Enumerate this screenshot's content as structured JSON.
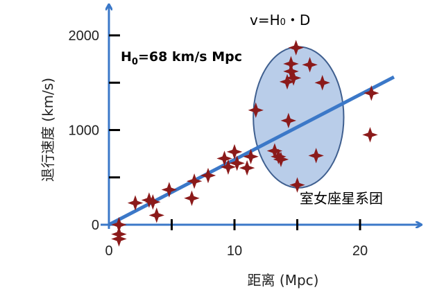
{
  "chart_data": {
    "type": "scatter",
    "xlabel": "距离 (Mpc)",
    "ylabel": "退行速度 (km/s)",
    "xlim": [
      0,
      24
    ],
    "ylim": [
      0,
      2100
    ],
    "x_ticks": [
      0,
      10,
      20
    ],
    "x_minor_ticks": [
      5,
      15
    ],
    "y_ticks": [
      0,
      1000,
      2000
    ],
    "y_minor_ticks": [
      500,
      1500
    ],
    "points": [
      {
        "x": 0.8,
        "y": 0
      },
      {
        "x": 0.8,
        "y": -100
      },
      {
        "x": 0.8,
        "y": -150
      },
      {
        "x": 2.1,
        "y": 230
      },
      {
        "x": 3.2,
        "y": 260
      },
      {
        "x": 3.5,
        "y": 240
      },
      {
        "x": 3.8,
        "y": 100
      },
      {
        "x": 4.8,
        "y": 370
      },
      {
        "x": 6.6,
        "y": 280
      },
      {
        "x": 6.8,
        "y": 460
      },
      {
        "x": 7.9,
        "y": 520
      },
      {
        "x": 9.2,
        "y": 700
      },
      {
        "x": 9.5,
        "y": 610
      },
      {
        "x": 10.0,
        "y": 770
      },
      {
        "x": 10.2,
        "y": 650
      },
      {
        "x": 11.0,
        "y": 600
      },
      {
        "x": 11.3,
        "y": 720
      },
      {
        "x": 11.7,
        "y": 1210
      },
      {
        "x": 13.2,
        "y": 780
      },
      {
        "x": 13.5,
        "y": 720
      },
      {
        "x": 13.7,
        "y": 690
      },
      {
        "x": 14.3,
        "y": 1100
      },
      {
        "x": 14.5,
        "y": 1700
      },
      {
        "x": 14.5,
        "y": 1620
      },
      {
        "x": 14.2,
        "y": 1510
      },
      {
        "x": 14.7,
        "y": 1550
      },
      {
        "x": 14.9,
        "y": 1870
      },
      {
        "x": 15.0,
        "y": 420
      },
      {
        "x": 16.0,
        "y": 1690
      },
      {
        "x": 16.5,
        "y": 730
      },
      {
        "x": 17.0,
        "y": 1500
      },
      {
        "x": 20.9,
        "y": 1390
      },
      {
        "x": 20.8,
        "y": 950
      }
    ],
    "fit_line": {
      "x": [
        0,
        22.7
      ],
      "y": [
        0,
        1560
      ]
    },
    "cluster": {
      "label": "室女座星系团",
      "center": [
        15.1,
        1135
      ],
      "rx": 3.6,
      "ry": 745,
      "fill": "#b9cde9",
      "stroke": "#3f5f8f"
    },
    "annotations": {
      "formula_prefix": "v=H",
      "formula_sub": "0",
      "formula_suffix": "・D",
      "hubble_prefix": "H",
      "hubble_sub": "0",
      "hubble_suffix": "=68 km/s Mpc"
    },
    "colors": {
      "axis": "#3b78c8",
      "line": "#3b78c8",
      "marker": "#8b1a1a",
      "tick": "#000000"
    }
  }
}
